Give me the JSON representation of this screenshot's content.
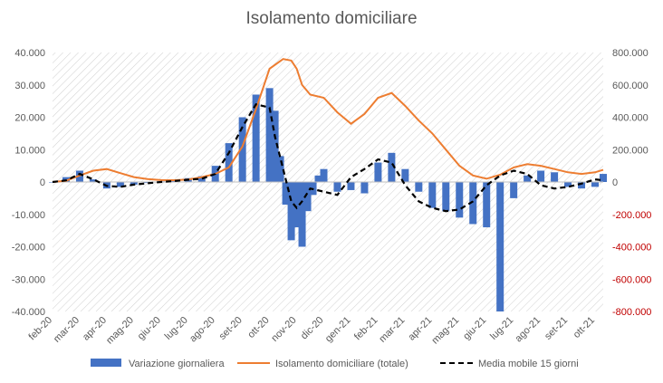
{
  "chart_data": {
    "type": "bar+line",
    "title": "Isolamento domiciliare",
    "categories": [
      "feb-20",
      "mar-20",
      "apr-20",
      "mag-20",
      "giu-20",
      "lug-20",
      "ago-20",
      "set-20",
      "ott-20",
      "nov-20",
      "dic-20",
      "gen-21",
      "feb-21",
      "mar-21",
      "apr-21",
      "mag-21",
      "giu-21",
      "lug-21",
      "ago-21",
      "set-21",
      "ott-21"
    ],
    "left_axis": {
      "min": -40000,
      "max": 40000,
      "ticks": [
        "40.000",
        "30.000",
        "20.000",
        "10.000",
        "0",
        "-10.000",
        "-20.000",
        "-30.000",
        "-40.000"
      ]
    },
    "right_axis": {
      "min": -800000,
      "max": 800000,
      "ticks": [
        "800.000",
        "600.000",
        "400.000",
        "200.000",
        "0",
        "-200.000",
        "-400.000",
        "-600.000",
        "-800.000"
      ],
      "color": "#c00000"
    },
    "series": [
      {
        "name": "Variazione giornaliera",
        "kind": "bar",
        "axis": "left",
        "color": "#4472c4",
        "x": [
          0,
          0.5,
          1,
          1.5,
          2,
          2.5,
          3,
          3.5,
          4,
          4.5,
          5,
          5.5,
          6,
          6.5,
          7,
          7.5,
          8,
          8.2,
          8.4,
          8.6,
          8.8,
          9,
          9.2,
          9.4,
          9.6,
          9.8,
          10,
          10.5,
          11,
          11.5,
          12,
          12.5,
          13,
          13.5,
          14,
          14.5,
          15,
          15.5,
          16,
          16.5,
          17,
          17.5,
          18,
          18.5,
          19,
          19.5,
          20,
          20.3
        ],
        "values": [
          0,
          1500,
          3500,
          800,
          -2000,
          -1500,
          -800,
          -300,
          200,
          800,
          1200,
          1800,
          5000,
          12000,
          20000,
          27000,
          29000,
          22000,
          8000,
          -7000,
          -18000,
          -14000,
          -20000,
          -9000,
          -4000,
          2000,
          4000,
          -3000,
          -2500,
          -3500,
          6000,
          9000,
          4000,
          -3000,
          -8000,
          -9000,
          -11000,
          -13000,
          -14000,
          -40000,
          -5000,
          2000,
          3500,
          3000,
          -1500,
          -2000,
          -1500,
          2500
        ]
      },
      {
        "name": "Isolamento domiciliare (totale)",
        "kind": "line",
        "axis": "right",
        "color": "#ed7d31",
        "x": [
          0,
          0.5,
          1,
          1.5,
          2,
          2.5,
          3,
          3.5,
          4,
          4.5,
          5,
          5.5,
          6,
          6.5,
          7,
          7.5,
          8,
          8.5,
          8.8,
          9,
          9.2,
          9.5,
          10,
          10.5,
          11,
          11.5,
          12,
          12.5,
          13,
          13.5,
          14,
          14.5,
          15,
          15.5,
          16,
          16.5,
          17,
          17.5,
          18,
          18.5,
          19,
          19.5,
          20,
          20.3
        ],
        "values": [
          0,
          8000,
          40000,
          70000,
          80000,
          55000,
          30000,
          18000,
          12000,
          11000,
          15000,
          30000,
          50000,
          90000,
          220000,
          450000,
          700000,
          760000,
          750000,
          700000,
          600000,
          540000,
          520000,
          430000,
          360000,
          420000,
          520000,
          550000,
          470000,
          380000,
          300000,
          200000,
          100000,
          40000,
          20000,
          45000,
          90000,
          110000,
          100000,
          80000,
          60000,
          50000,
          60000,
          75000
        ]
      },
      {
        "name": "Media mobile 15 giorni",
        "kind": "line-dashed",
        "axis": "left",
        "color": "#000000",
        "x": [
          0,
          0.5,
          1,
          1.5,
          2,
          2.5,
          3,
          3.5,
          4,
          4.5,
          5,
          5.5,
          6,
          6.5,
          7,
          7.5,
          8,
          8.2,
          8.5,
          8.8,
          9,
          9.2,
          9.5,
          10,
          10.5,
          11,
          11.5,
          12,
          12.5,
          13,
          13.5,
          14,
          14.5,
          15,
          15.5,
          16,
          16.5,
          17,
          17.5,
          18,
          18.5,
          19,
          19.5,
          20,
          20.3
        ],
        "values": [
          0,
          500,
          2500,
          800,
          -1200,
          -1500,
          -800,
          -400,
          0,
          300,
          700,
          1000,
          2500,
          9000,
          17000,
          24000,
          23000,
          14000,
          4000,
          -6000,
          -8000,
          -6000,
          -2000,
          -3000,
          -4000,
          1500,
          4000,
          7000,
          6000,
          -1000,
          -6000,
          -8000,
          -9000,
          -8500,
          -6000,
          -1000,
          2000,
          3500,
          2500,
          -1000,
          -2000,
          -1500,
          -500,
          800,
          500
        ]
      }
    ],
    "legend": {
      "placement": "bottom"
    },
    "grid": false
  }
}
